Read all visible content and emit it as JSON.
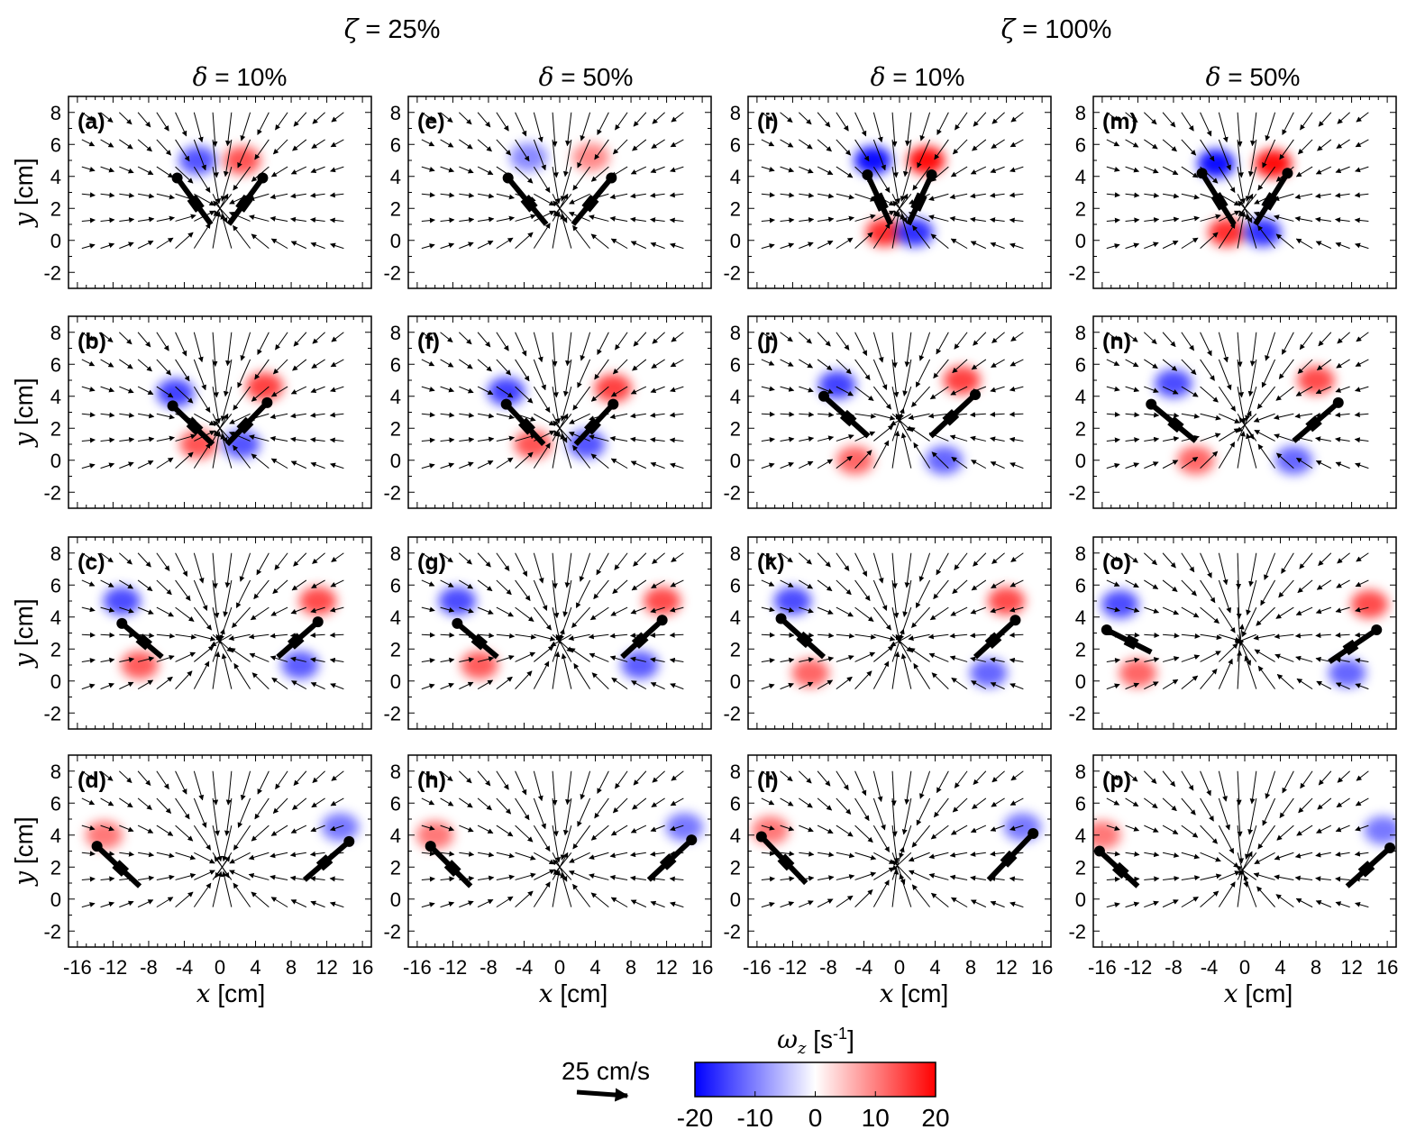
{
  "group_titles": {
    "left": {
      "symbol": "ζ",
      "text": " = 25%"
    },
    "right": {
      "symbol": "ζ",
      "text": " = 100%"
    }
  },
  "column_titles": [
    {
      "symbol": "δ",
      "text": " = 10%"
    },
    {
      "symbol": "δ",
      "text": " = 50%"
    },
    {
      "symbol": "δ",
      "text": " = 10%"
    },
    {
      "symbol": "δ",
      "text": " = 50%"
    }
  ],
  "axes": {
    "xlabel": {
      "symbol": "x",
      "text": " [cm]"
    },
    "ylabel": {
      "symbol": "y",
      "text": " [cm]"
    },
    "xticks": [
      "-16",
      "-12",
      "-8",
      "-4",
      "0",
      "4",
      "8",
      "12",
      "16"
    ],
    "yticks": [
      "8",
      "6",
      "4",
      "2",
      "0",
      "-2"
    ]
  },
  "legend": {
    "reference_vector_label": "25 cm/s",
    "colorbar_title": {
      "symbol": "ω",
      "sub": "z",
      "text": " [s",
      "sup": "-1",
      "end": "]"
    },
    "colorbar_ticks": [
      "-20",
      "-10",
      "0",
      "10",
      "20"
    ],
    "colors": {
      "negative": "#0000ff",
      "zero": "#ffffff",
      "positive": "#ff0000"
    }
  },
  "chart_data": {
    "type": "vector-field",
    "description_units": {
      "x": "cm",
      "y": "cm",
      "vorticity": "1/s",
      "velocity_scale": "25 cm/s"
    },
    "xlim": [
      -17,
      17
    ],
    "ylim": [
      -3,
      9
    ],
    "colorbar_range": [
      -20,
      20
    ],
    "panels": [
      {
        "label": "(a)",
        "zeta": "25%",
        "delta": "10%",
        "left_hinge": [
          -1,
          1
        ],
        "left_tip": [
          -4.8,
          3.9
        ],
        "right_hinge": [
          1,
          1
        ],
        "right_tip": [
          4.8,
          3.9
        ],
        "vortices": [
          {
            "x": -2.5,
            "y": 5,
            "w": -12
          },
          {
            "x": 2.5,
            "y": 5,
            "w": 12
          }
        ]
      },
      {
        "label": "(b)",
        "zeta": "25%",
        "delta": "10%",
        "left_hinge": [
          -0.8,
          1
        ],
        "left_tip": [
          -5.3,
          3.4
        ],
        "right_hinge": [
          0.8,
          1
        ],
        "right_tip": [
          5.3,
          3.6
        ],
        "vortices": [
          {
            "x": -5,
            "y": 4.2,
            "w": -14
          },
          {
            "x": 5,
            "y": 4.6,
            "w": 14
          },
          {
            "x": -2.4,
            "y": 1,
            "w": 12
          },
          {
            "x": 2.4,
            "y": 1,
            "w": -12
          }
        ]
      },
      {
        "label": "(c)",
        "zeta": "25%",
        "delta": "10%",
        "left_hinge": [
          -6.5,
          1.5
        ],
        "left_tip": [
          -11,
          3.6
        ],
        "right_hinge": [
          6.5,
          1.5
        ],
        "right_tip": [
          11,
          3.7
        ],
        "vortices": [
          {
            "x": -11,
            "y": 5,
            "w": -13
          },
          {
            "x": 11,
            "y": 5,
            "w": 13
          },
          {
            "x": -9,
            "y": 1,
            "w": 11
          },
          {
            "x": 9,
            "y": 1,
            "w": -11
          }
        ]
      },
      {
        "label": "(d)",
        "zeta": "25%",
        "delta": "10%",
        "left_hinge": [
          -9,
          0.8
        ],
        "left_tip": [
          -13.8,
          3.3
        ],
        "right_hinge": [
          9.5,
          1.2
        ],
        "right_tip": [
          14.5,
          3.6
        ],
        "vortices": [
          {
            "x": -13,
            "y": 4,
            "w": 8
          },
          {
            "x": 13.5,
            "y": 4.5,
            "w": -8
          }
        ]
      },
      {
        "label": "(e)",
        "zeta": "25%",
        "delta": "50%",
        "left_hinge": [
          -1.5,
          1
        ],
        "left_tip": [
          -5.8,
          3.9
        ],
        "right_hinge": [
          1.5,
          1
        ],
        "right_tip": [
          5.8,
          3.9
        ],
        "vortices": [
          {
            "x": -3.5,
            "y": 5.2,
            "w": -6
          },
          {
            "x": 3.5,
            "y": 5.2,
            "w": 6
          }
        ]
      },
      {
        "label": "(f)",
        "zeta": "25%",
        "delta": "50%",
        "left_hinge": [
          -1.8,
          1
        ],
        "left_tip": [
          -6,
          3.5
        ],
        "right_hinge": [
          1.8,
          1
        ],
        "right_tip": [
          6,
          3.5
        ],
        "vortices": [
          {
            "x": -6,
            "y": 4.3,
            "w": -14
          },
          {
            "x": 6,
            "y": 4.5,
            "w": 14
          },
          {
            "x": -3,
            "y": 1,
            "w": 12
          },
          {
            "x": 3,
            "y": 1,
            "w": -12
          }
        ]
      },
      {
        "label": "(g)",
        "zeta": "25%",
        "delta": "50%",
        "left_hinge": [
          -7,
          1.5
        ],
        "left_tip": [
          -11.5,
          3.6
        ],
        "right_hinge": [
          7,
          1.5
        ],
        "right_tip": [
          11.5,
          3.8
        ],
        "vortices": [
          {
            "x": -11.5,
            "y": 5,
            "w": -13
          },
          {
            "x": 11.5,
            "y": 5,
            "w": 13
          },
          {
            "x": -9,
            "y": 1,
            "w": 11
          },
          {
            "x": 9,
            "y": 1,
            "w": -11
          }
        ]
      },
      {
        "label": "(h)",
        "zeta": "25%",
        "delta": "50%",
        "left_hinge": [
          -10,
          0.8
        ],
        "left_tip": [
          -14.5,
          3.3
        ],
        "right_hinge": [
          10,
          1.2
        ],
        "right_tip": [
          14.8,
          3.7
        ],
        "vortices": [
          {
            "x": -14,
            "y": 4,
            "w": 8
          },
          {
            "x": 14,
            "y": 4.5,
            "w": -8
          }
        ]
      },
      {
        "label": "(i)",
        "zeta": "100%",
        "delta": "10%",
        "left_hinge": [
          -1,
          1
        ],
        "left_tip": [
          -3.6,
          4.1
        ],
        "right_hinge": [
          1,
          1
        ],
        "right_tip": [
          3.6,
          4.1
        ],
        "vortices": [
          {
            "x": -3,
            "y": 5,
            "w": -20
          },
          {
            "x": 3,
            "y": 5,
            "w": 20
          },
          {
            "x": -1.7,
            "y": 0.5,
            "w": 16
          },
          {
            "x": 1.7,
            "y": 0.5,
            "w": -16
          }
        ]
      },
      {
        "label": "(j)",
        "zeta": "100%",
        "delta": "10%",
        "left_hinge": [
          -3.5,
          1.5
        ],
        "left_tip": [
          -8.5,
          4
        ],
        "right_hinge": [
          3.5,
          1.5
        ],
        "right_tip": [
          8.5,
          4.1
        ],
        "vortices": [
          {
            "x": -7,
            "y": 4.7,
            "w": -14
          },
          {
            "x": 7,
            "y": 5,
            "w": 14
          },
          {
            "x": -5,
            "y": 0,
            "w": 10
          },
          {
            "x": 5,
            "y": 0,
            "w": -10
          }
        ]
      },
      {
        "label": "(k)",
        "zeta": "100%",
        "delta": "10%",
        "left_hinge": [
          -8.5,
          1.5
        ],
        "left_tip": [
          -13.3,
          3.9
        ],
        "right_hinge": [
          8.5,
          1.5
        ],
        "right_tip": [
          13,
          3.8
        ],
        "vortices": [
          {
            "x": -12,
            "y": 5,
            "w": -13
          },
          {
            "x": 12,
            "y": 5,
            "w": 13
          },
          {
            "x": -10,
            "y": 0.5,
            "w": 10
          },
          {
            "x": 10,
            "y": 0.5,
            "w": -10
          }
        ]
      },
      {
        "label": "(l)",
        "zeta": "100%",
        "delta": "10%",
        "left_hinge": [
          -10.5,
          1
        ],
        "left_tip": [
          -15.5,
          3.9
        ],
        "right_hinge": [
          10,
          1.2
        ],
        "right_tip": [
          15,
          4.1
        ],
        "vortices": [
          {
            "x": -14.5,
            "y": 4.3,
            "w": 8
          },
          {
            "x": 13.8,
            "y": 4.5,
            "w": -8
          }
        ]
      },
      {
        "label": "(m)",
        "zeta": "100%",
        "delta": "50%",
        "left_hinge": [
          -1.2,
          1
        ],
        "left_tip": [
          -4.8,
          4.2
        ],
        "right_hinge": [
          1.2,
          1
        ],
        "right_tip": [
          4.8,
          4.2
        ],
        "vortices": [
          {
            "x": -3.2,
            "y": 4.8,
            "w": -20
          },
          {
            "x": 3.2,
            "y": 4.8,
            "w": 20
          },
          {
            "x": -2,
            "y": 0.5,
            "w": 16
          },
          {
            "x": 2,
            "y": 0.5,
            "w": -16
          }
        ]
      },
      {
        "label": "(n)",
        "zeta": "100%",
        "delta": "50%",
        "left_hinge": [
          -5.5,
          1.2
        ],
        "left_tip": [
          -10.5,
          3.5
        ],
        "right_hinge": [
          5.5,
          1.2
        ],
        "right_tip": [
          10.5,
          3.6
        ],
        "vortices": [
          {
            "x": -8,
            "y": 4.8,
            "w": -13
          },
          {
            "x": 8,
            "y": 5,
            "w": 13
          },
          {
            "x": -5.5,
            "y": 0,
            "w": 10
          },
          {
            "x": 5.5,
            "y": 0,
            "w": -10
          }
        ]
      },
      {
        "label": "(o)",
        "zeta": "100%",
        "delta": "50%",
        "left_hinge": [
          -10.5,
          1.8
        ],
        "left_tip": [
          -15.5,
          3.2
        ],
        "right_hinge": [
          9.5,
          1.2
        ],
        "right_tip": [
          14.8,
          3.2
        ],
        "vortices": [
          {
            "x": -14,
            "y": 4.8,
            "w": -13
          },
          {
            "x": 14,
            "y": 4.8,
            "w": 13
          },
          {
            "x": -12,
            "y": 0.5,
            "w": 10
          },
          {
            "x": 11.5,
            "y": 0.5,
            "w": -10
          }
        ]
      },
      {
        "label": "(p)",
        "zeta": "100%",
        "delta": "50%",
        "left_hinge": [
          -12,
          0.8
        ],
        "left_tip": [
          -16.3,
          3
        ],
        "right_hinge": [
          11.5,
          0.8
        ],
        "right_tip": [
          16.3,
          3.2
        ],
        "vortices": [
          {
            "x": -16,
            "y": 4,
            "w": 8
          },
          {
            "x": 15.5,
            "y": 4.3,
            "w": -8
          }
        ]
      }
    ]
  }
}
